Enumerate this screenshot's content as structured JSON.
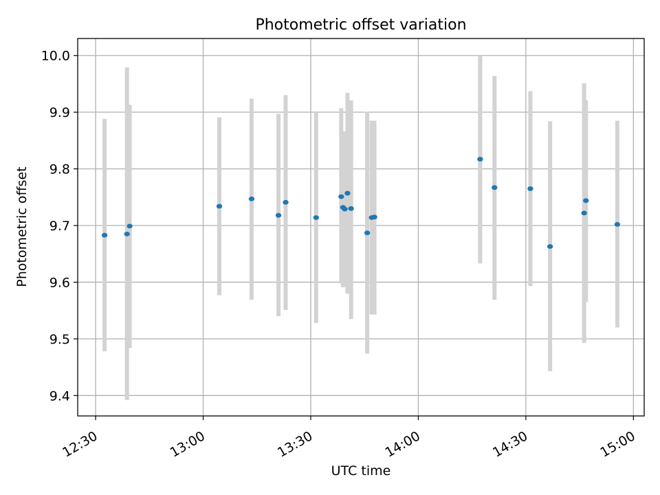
{
  "chart_data": {
    "type": "scatter",
    "title": "Photometric offset variation",
    "xlabel": "UTC time",
    "ylabel": "Photometric offset",
    "x_tick_labels": [
      "12:30",
      "13:00",
      "13:30",
      "14:00",
      "14:30",
      "15:00"
    ],
    "x_tick_minutes": [
      750,
      780,
      810,
      840,
      870,
      900
    ],
    "y_ticks": [
      9.4,
      9.5,
      9.6,
      9.7,
      9.8,
      9.9,
      10.0
    ],
    "y_tick_labels": [
      "9.4",
      "9.5",
      "9.6",
      "9.7",
      "9.8",
      "9.9",
      "10.0"
    ],
    "xlim": [
      "12:25",
      "15:03"
    ],
    "ylim": [
      9.364,
      10.03
    ],
    "grid": true,
    "legend": null,
    "point_color": "#1f77b4",
    "errorbar_color": "#d3d3d3",
    "points": [
      {
        "t": "12:32:30",
        "y": 9.683,
        "ylo": 9.478,
        "yhi": 9.888
      },
      {
        "t": "12:38:45",
        "y": 9.685,
        "ylo": 9.392,
        "yhi": 9.979
      },
      {
        "t": "12:39:30",
        "y": 9.699,
        "ylo": 9.484,
        "yhi": 9.913
      },
      {
        "t": "13:04:30",
        "y": 9.734,
        "ylo": 9.577,
        "yhi": 9.891
      },
      {
        "t": "13:13:30",
        "y": 9.747,
        "ylo": 9.569,
        "yhi": 9.924
      },
      {
        "t": "13:21:00",
        "y": 9.718,
        "ylo": 9.54,
        "yhi": 9.897
      },
      {
        "t": "13:23:00",
        "y": 9.741,
        "ylo": 9.551,
        "yhi": 9.93
      },
      {
        "t": "13:31:30",
        "y": 9.714,
        "ylo": 9.528,
        "yhi": 9.9
      },
      {
        "t": "13:38:30",
        "y": 9.751,
        "ylo": 9.598,
        "yhi": 9.907
      },
      {
        "t": "13:39:00",
        "y": 9.732,
        "ylo": 9.591,
        "yhi": 9.866
      },
      {
        "t": "13:39:30",
        "y": 9.729,
        "ylo": 9.593,
        "yhi": 9.866
      },
      {
        "t": "13:40:15",
        "y": 9.757,
        "ylo": 9.58,
        "yhi": 9.934
      },
      {
        "t": "13:41:15",
        "y": 9.73,
        "ylo": 9.535,
        "yhi": 9.921
      },
      {
        "t": "13:45:45",
        "y": 9.687,
        "ylo": 9.474,
        "yhi": 9.901
      },
      {
        "t": "13:47:00",
        "y": 9.714,
        "ylo": 9.543,
        "yhi": 9.885
      },
      {
        "t": "13:47:45",
        "y": 9.715,
        "ylo": 9.543,
        "yhi": 9.885
      },
      {
        "t": "14:17:15",
        "y": 9.817,
        "ylo": 9.633,
        "yhi": 10.0
      },
      {
        "t": "14:21:15",
        "y": 9.767,
        "ylo": 9.569,
        "yhi": 9.964
      },
      {
        "t": "14:31:15",
        "y": 9.765,
        "ylo": 9.593,
        "yhi": 9.937
      },
      {
        "t": "14:36:45",
        "y": 9.663,
        "ylo": 9.443,
        "yhi": 9.884
      },
      {
        "t": "14:46:15",
        "y": 9.722,
        "ylo": 9.493,
        "yhi": 9.951
      },
      {
        "t": "14:46:45",
        "y": 9.744,
        "ylo": 9.565,
        "yhi": 9.921
      },
      {
        "t": "14:55:30",
        "y": 9.702,
        "ylo": 9.52,
        "yhi": 9.885
      }
    ]
  }
}
